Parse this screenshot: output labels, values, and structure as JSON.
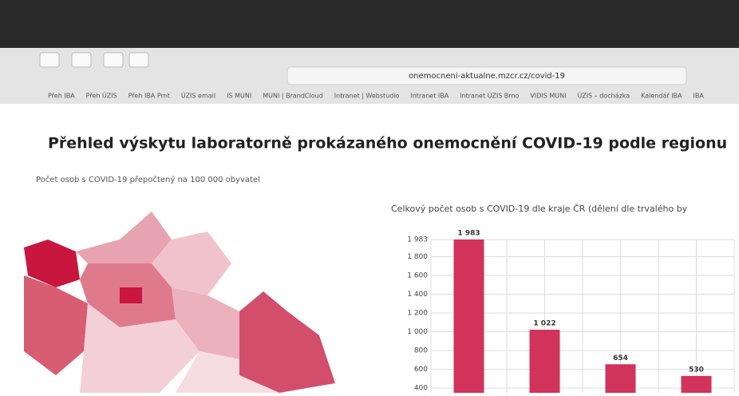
{
  "browser": {
    "url": "onemocneni-aktualne.mzcr.cz/covid-19",
    "bookmarks": [
      "Přeh IBA",
      "Přeh ÚZIS",
      "Přeh IBA Prnt",
      "ÚZIS email",
      "IS MUNI",
      "MUNI | BrandCloud",
      "Intranet | Webstudio",
      "Intranet IBA",
      "Intranet ÚZIS Brno",
      "VIDIS MUNI",
      "ÚZIS – docházka",
      "Kalendář IBA",
      "IBA"
    ]
  },
  "page": {
    "title": "Přehled výskytu laboratorně prokázaného onemocnění COVID-19 podle regionu",
    "map_subtitle": "Počet osob s COVID-19 přepočtený na 100 000 obyvatel"
  },
  "chart_data": {
    "type": "bar",
    "title": "Celkový počet osob s COVID-19 dle kraje ČR (dělení dle trvalého by",
    "categories": [
      null,
      null,
      null,
      null
    ],
    "values": [
      1983,
      1022,
      654,
      530
    ],
    "value_labels": [
      "1 983",
      "1 022",
      "654",
      "530"
    ],
    "color": "#d2335a",
    "ylim": [
      350,
      1983
    ],
    "yticks": [
      {
        "value": 400,
        "label": "400"
      },
      600,
      800,
      {
        "value": 1000,
        "label": "1 000"
      },
      {
        "value": 1200,
        "label": "1 200"
      },
      {
        "value": 1400,
        "label": "1 400"
      },
      {
        "value": 1600,
        "label": "1 600"
      },
      {
        "value": 1800,
        "label": "1 800"
      },
      {
        "value": 1983,
        "label": "1 983"
      }
    ],
    "grid": true
  }
}
